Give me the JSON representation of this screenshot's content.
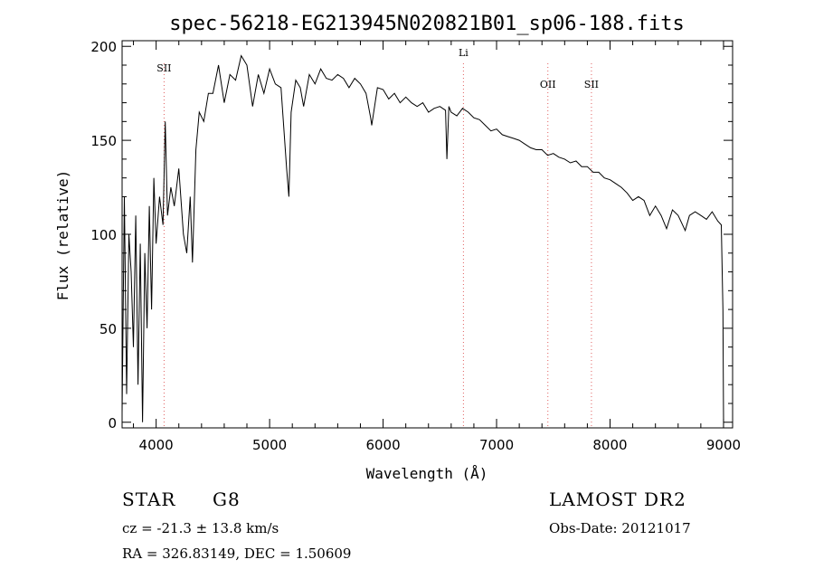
{
  "chart_data": {
    "type": "line",
    "title": "spec-56218-EG213945N020821B01_sp06-188.fits",
    "xlabel": "Wavelength (Å)",
    "ylabel": "Flux (relative)",
    "xlim": [
      3700,
      9080
    ],
    "ylim": [
      -3,
      203
    ],
    "xticks": [
      4000,
      5000,
      6000,
      7000,
      8000,
      9000
    ],
    "yticks": [
      0,
      50,
      100,
      150,
      200
    ],
    "lines": [
      {
        "label": "SII",
        "x": 4070
      },
      {
        "label": "Li",
        "x": 6708
      },
      {
        "label": "OII",
        "x": 7452
      },
      {
        "label": "SII",
        "x": 7836
      }
    ],
    "series": [
      {
        "name": "flux",
        "x": [
          3700,
          3720,
          3740,
          3760,
          3780,
          3800,
          3820,
          3840,
          3860,
          3880,
          3900,
          3920,
          3940,
          3960,
          3980,
          4000,
          4030,
          4060,
          4080,
          4100,
          4130,
          4160,
          4200,
          4240,
          4270,
          4300,
          4320,
          4350,
          4380,
          4420,
          4460,
          4500,
          4550,
          4600,
          4650,
          4700,
          4750,
          4800,
          4850,
          4900,
          4950,
          5000,
          5050,
          5100,
          5150,
          5170,
          5190,
          5230,
          5270,
          5300,
          5350,
          5400,
          5450,
          5500,
          5550,
          5600,
          5650,
          5700,
          5750,
          5800,
          5850,
          5890,
          5900,
          5950,
          6000,
          6050,
          6100,
          6150,
          6200,
          6250,
          6300,
          6350,
          6400,
          6450,
          6500,
          6550,
          6562,
          6580,
          6600,
          6650,
          6700,
          6750,
          6800,
          6850,
          6900,
          6950,
          7000,
          7050,
          7100,
          7150,
          7200,
          7250,
          7300,
          7350,
          7400,
          7450,
          7500,
          7550,
          7600,
          7650,
          7700,
          7750,
          7800,
          7850,
          7900,
          7950,
          8000,
          8050,
          8100,
          8150,
          8200,
          8250,
          8300,
          8350,
          8400,
          8450,
          8498,
          8550,
          8600,
          8662,
          8700,
          8750,
          8800,
          8850,
          8900,
          8950,
          8980,
          8995,
          9000
        ],
        "values": [
          5,
          120,
          15,
          100,
          80,
          40,
          110,
          20,
          95,
          0,
          90,
          50,
          115,
          60,
          130,
          95,
          120,
          105,
          160,
          110,
          125,
          115,
          135,
          100,
          90,
          120,
          85,
          145,
          165,
          160,
          175,
          175,
          190,
          170,
          185,
          182,
          195,
          190,
          168,
          185,
          175,
          188,
          180,
          178,
          135,
          120,
          165,
          182,
          178,
          168,
          185,
          180,
          188,
          183,
          182,
          185,
          183,
          178,
          183,
          180,
          175,
          162,
          158,
          178,
          177,
          172,
          175,
          170,
          173,
          170,
          168,
          170,
          165,
          167,
          168,
          166,
          140,
          168,
          165,
          163,
          167,
          165,
          162,
          161,
          158,
          155,
          156,
          153,
          152,
          151,
          150,
          148,
          146,
          145,
          145,
          142,
          143,
          141,
          140,
          138,
          139,
          136,
          136,
          133,
          133,
          130,
          129,
          127,
          125,
          122,
          118,
          120,
          118,
          110,
          115,
          110,
          103,
          113,
          110,
          102,
          110,
          112,
          110,
          108,
          112,
          107,
          105,
          60,
          0
        ]
      }
    ]
  },
  "info": {
    "class": "STAR",
    "subclass": "G8",
    "survey": "LAMOST DR2",
    "cz": "cz = -21.3 ± 13.8 km/s",
    "obs_date": "Obs-Date: 20121017",
    "radec": "RA = 326.83149, DEC =   1.50609"
  }
}
